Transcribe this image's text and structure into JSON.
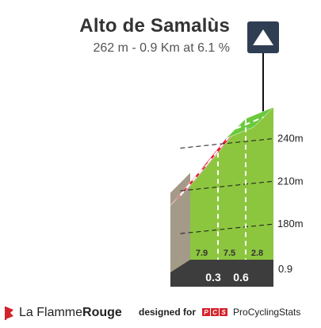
{
  "climb": {
    "name": "Alto de Samalùs",
    "stats": "262 m - 0.9 Km at 6.1 %"
  },
  "footer": {
    "brand_prefix": "La Flamme",
    "brand_suffix": "Rouge",
    "credit_prefix": "designed for",
    "credit_logo": "PCS",
    "credit_site": "ProCyclingStats"
  },
  "icons": {
    "summit": "mountain-peak-icon",
    "brand": "flame-flag-icon"
  },
  "chart_data": {
    "type": "area",
    "title": "Alto de Samalùs",
    "subtitle": "262 m - 0.9 Km at 6.1 %",
    "x_unit": "km",
    "y_unit": "m",
    "x_range": [
      0,
      0.9
    ],
    "y_range": [
      155,
      265
    ],
    "elevation_ticks": [
      "180m",
      "210m",
      "240m"
    ],
    "elevation_tick_values": [
      180,
      210,
      240
    ],
    "x_markers": [
      {
        "km": 0.3,
        "label": "0.3"
      },
      {
        "km": 0.6,
        "label": "0.6"
      },
      {
        "km": 0.9,
        "label": "0.9"
      }
    ],
    "profile": {
      "km": [
        0,
        0.3,
        0.6,
        0.9
      ],
      "elevation": [
        207,
        230,
        254,
        262
      ]
    },
    "segments": [
      {
        "from_km": 0,
        "to_km": 0.3,
        "gradient": 7.9,
        "label": "7.9",
        "color": "#e2223c"
      },
      {
        "from_km": 0.3,
        "to_km": 0.6,
        "gradient": 7.5,
        "label": "7.5",
        "color": "#e2223c"
      },
      {
        "from_km": 0.6,
        "to_km": 0.9,
        "gradient": 2.8,
        "label": "2.8",
        "color": "#6bc93e"
      }
    ],
    "colors": {
      "body": "#8cc63f",
      "side": "#a39a88",
      "base": "#3d3d3d",
      "grid": "#1a1a1a"
    }
  }
}
